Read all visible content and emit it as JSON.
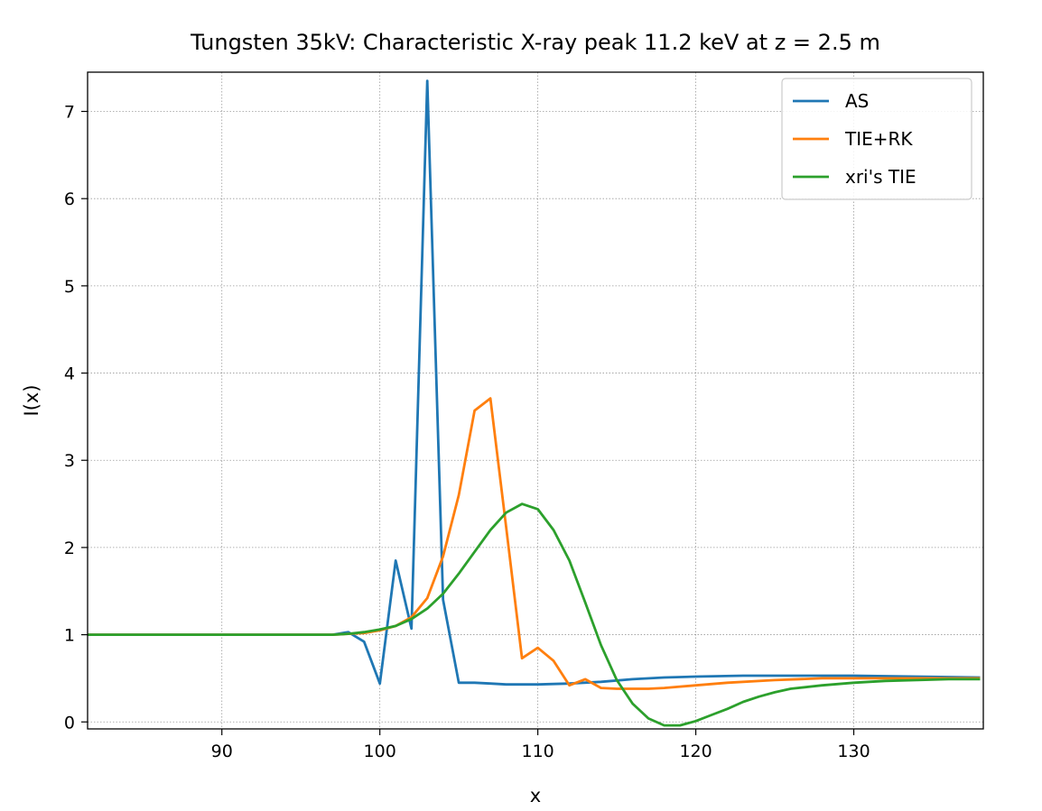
{
  "chart_data": {
    "type": "line",
    "title": "Tungsten 35kV: Characteristic X-ray peak 11.2 keV at z = 2.5 m",
    "xlabel": "x",
    "ylabel": "I(x)",
    "xlim": [
      81.5,
      138.2
    ],
    "ylim": [
      -0.08,
      7.45
    ],
    "xticks": [
      90,
      100,
      110,
      120,
      130
    ],
    "yticks": [
      0,
      1,
      2,
      3,
      4,
      5,
      6,
      7
    ],
    "grid": true,
    "legend_position": "top-right",
    "series": [
      {
        "name": "AS",
        "color": "#1f77b4",
        "x": [
          81,
          85,
          90,
          95,
          97,
          98,
          99,
          100,
          101,
          102,
          103,
          104,
          105,
          106,
          107,
          108,
          109,
          110,
          112,
          114,
          116,
          118,
          120,
          123,
          126,
          130,
          134,
          138
        ],
        "y": [
          1.0,
          1.0,
          1.0,
          1.0,
          1.0,
          1.03,
          0.92,
          0.44,
          1.85,
          1.07,
          7.35,
          1.4,
          0.45,
          0.45,
          0.44,
          0.43,
          0.43,
          0.43,
          0.44,
          0.46,
          0.49,
          0.51,
          0.52,
          0.53,
          0.53,
          0.53,
          0.52,
          0.51
        ]
      },
      {
        "name": "TIE+RK",
        "color": "#ff7f0e",
        "x": [
          81,
          85,
          90,
          95,
          97,
          98,
          99,
          100,
          101,
          102,
          103,
          104,
          105,
          106,
          107,
          108,
          109,
          110,
          111,
          112,
          113,
          114,
          115,
          116,
          117,
          118,
          120,
          122,
          125,
          128,
          131,
          134,
          138
        ],
        "y": [
          1.0,
          1.0,
          1.0,
          1.0,
          1.0,
          1.01,
          1.02,
          1.05,
          1.1,
          1.2,
          1.42,
          1.9,
          2.6,
          3.57,
          3.71,
          2.23,
          0.73,
          0.85,
          0.7,
          0.42,
          0.49,
          0.39,
          0.38,
          0.38,
          0.38,
          0.39,
          0.42,
          0.45,
          0.48,
          0.5,
          0.5,
          0.5,
          0.5
        ]
      },
      {
        "name": "xri's TIE",
        "color": "#2ca02c",
        "x": [
          81,
          85,
          90,
          95,
          97,
          98,
          99,
          100,
          101,
          102,
          103,
          104,
          105,
          106,
          107,
          108,
          109,
          110,
          111,
          112,
          113,
          114,
          115,
          116,
          117,
          118,
          119,
          120,
          121,
          122,
          123,
          124,
          125,
          126,
          128,
          130,
          132,
          134,
          136,
          138
        ],
        "y": [
          1.0,
          1.0,
          1.0,
          1.0,
          1.0,
          1.01,
          1.03,
          1.06,
          1.1,
          1.18,
          1.3,
          1.47,
          1.7,
          1.95,
          2.2,
          2.4,
          2.5,
          2.44,
          2.2,
          1.85,
          1.37,
          0.88,
          0.48,
          0.21,
          0.04,
          -0.04,
          -0.04,
          0.01,
          0.08,
          0.15,
          0.23,
          0.29,
          0.34,
          0.38,
          0.42,
          0.45,
          0.47,
          0.48,
          0.49,
          0.49
        ]
      }
    ]
  }
}
